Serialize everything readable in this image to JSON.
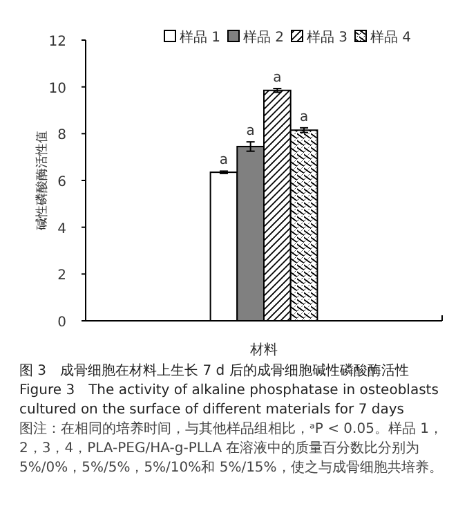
{
  "chart_data": {
    "type": "bar",
    "title": "图 3　成骨细胞在材料上生长 7 d 后的成骨细胞碱性磷酸酶活性",
    "subtitle": "Figure 3　The activity of alkaline phosphatase in osteoblasts cultured on the surface of different materials for 7 days",
    "xlabel": "材料",
    "ylabel": "碱性磷酸酶活性值",
    "categories": [
      null
    ],
    "series": [
      {
        "name": "样品 1",
        "color": "#ffffff",
        "values": [
          6.35
        ],
        "errors": [
          0.05
        ]
      },
      {
        "name": "样品 2",
        "color": "#808080",
        "values": [
          7.45
        ],
        "errors": [
          0.2
        ]
      },
      {
        "name": "样品 3",
        "color": "#000000",
        "values": [
          9.85
        ],
        "errors": [
          0.08
        ]
      },
      {
        "name": "样品 4",
        "color": "#000000",
        "values": [
          8.15
        ],
        "errors": [
          0.1
        ]
      }
    ],
    "ylim": [
      0,
      12
    ],
    "yticks": [
      0,
      2,
      4,
      6,
      8,
      10,
      12
    ],
    "legend": "top",
    "annotations": [
      {
        "text": "a",
        "y": 6.4
      },
      {
        "text": "a",
        "y": 7.65
      },
      {
        "text": "a",
        "y": 9.93
      },
      {
        "text": "a",
        "y": 8.25
      },
      "图注：在相同的培养时间，与其他样品组相比，ᵃP < 0.05。样品 1，2，3，4，PLA-PEG/HA-g-PLLA 在溶液中的质量百分数比分别为 5%/0%，5%/5%，5%/10%和 5%/15%，使之与成骨细胞共培养。"
    ]
  }
}
